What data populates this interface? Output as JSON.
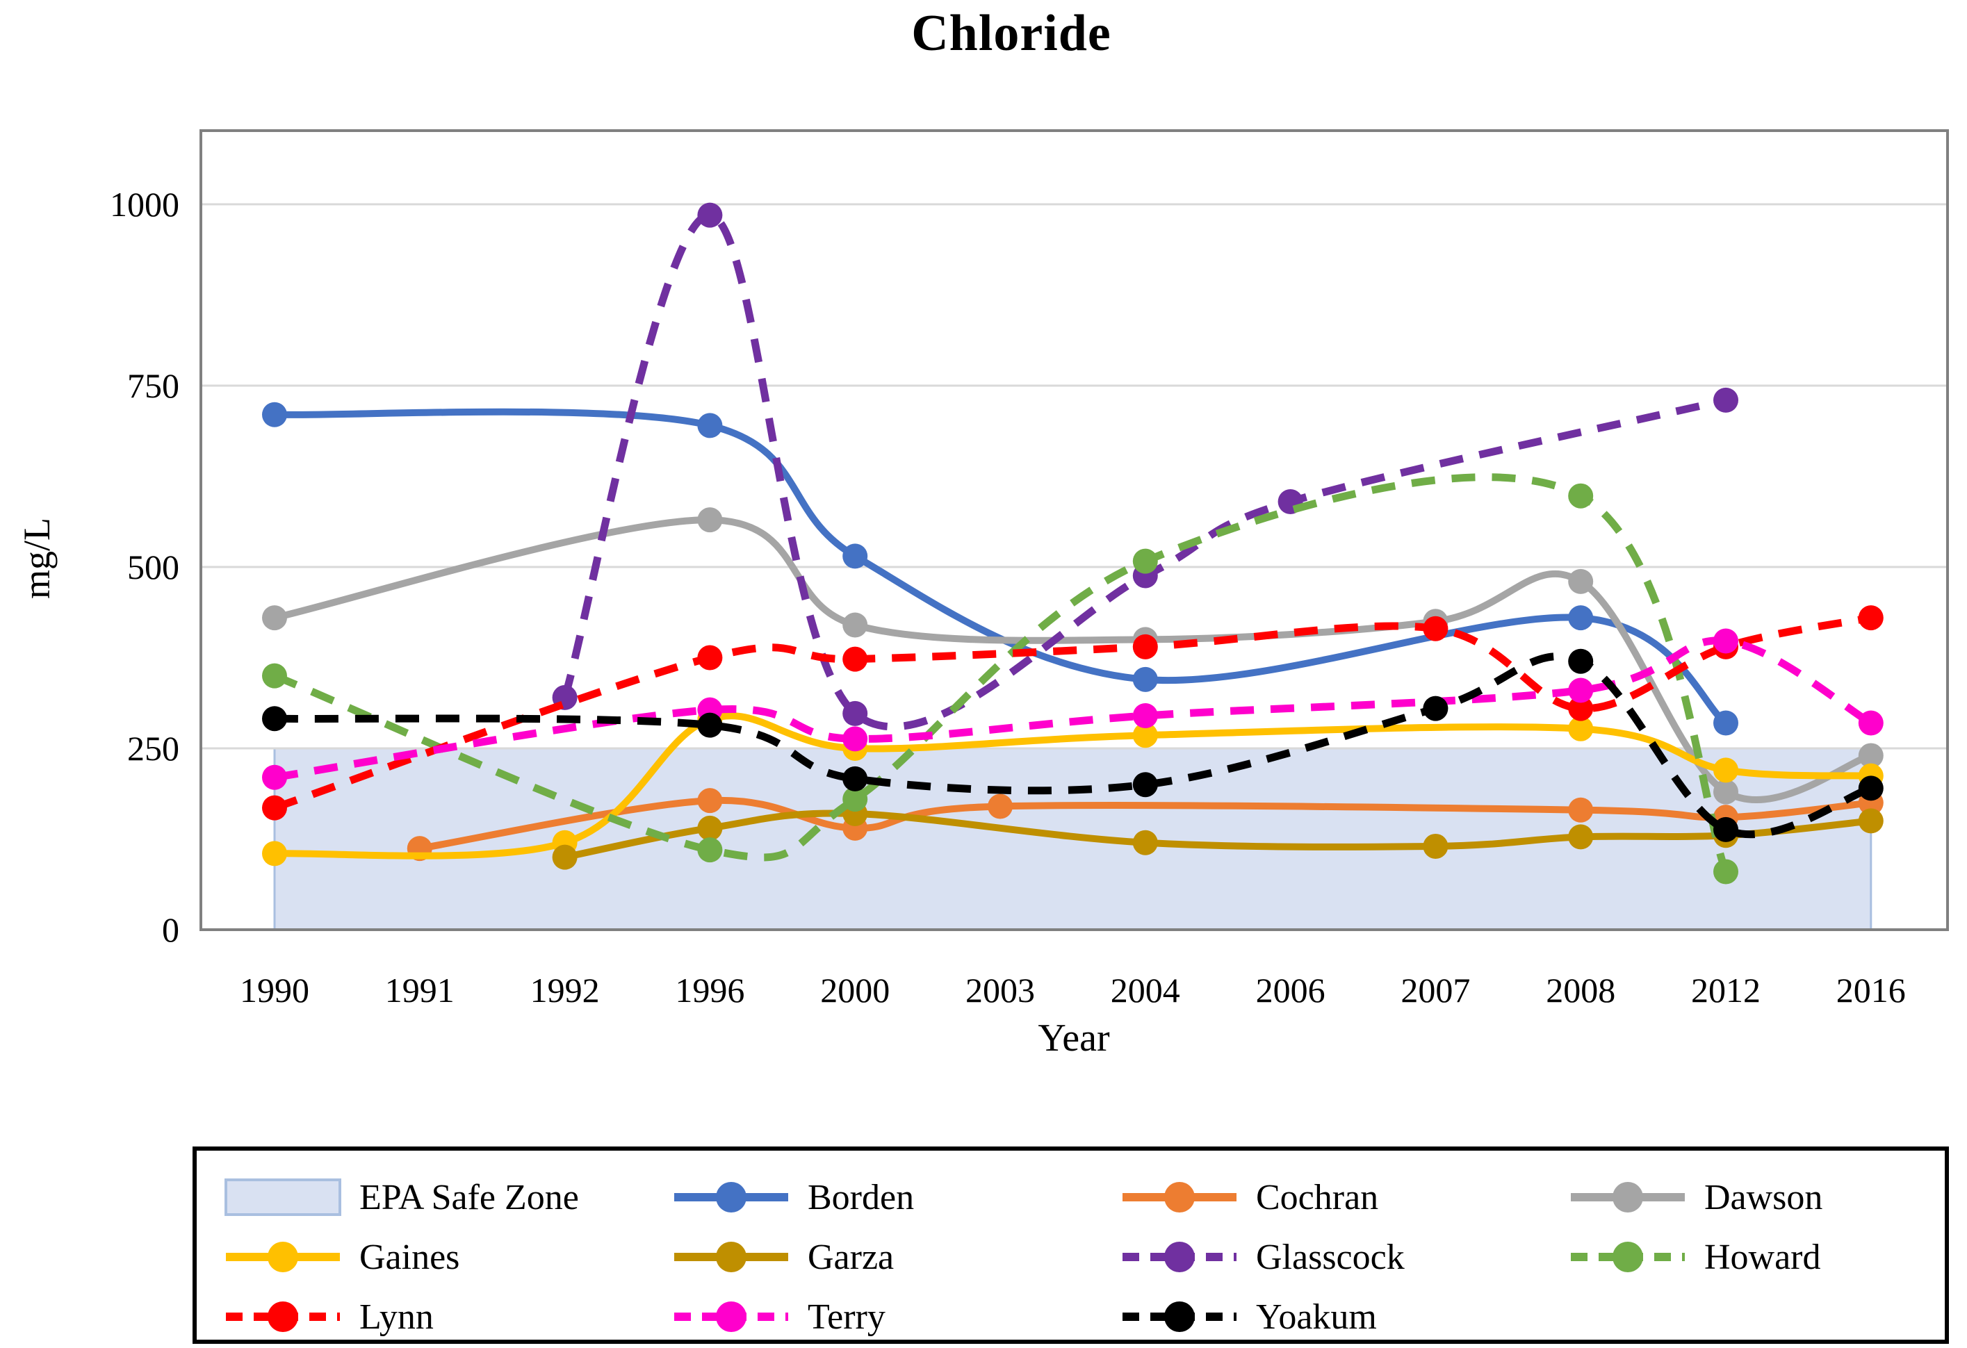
{
  "title": "Chloride",
  "y_axis": {
    "label": "mg/L",
    "ticks": [
      0,
      250,
      500,
      750,
      1000
    ],
    "max": 1100
  },
  "x_axis": {
    "label": "Year"
  },
  "frame": {
    "border_color": "#808080",
    "gridline_color": "#D9D9D9",
    "background": "#FFFFFF"
  },
  "epa_zone": {
    "label": "EPA Safe Zone",
    "fill": "#D9E1F2",
    "border": "#A9BFE0",
    "from": 0,
    "to": 250
  },
  "chart_data": {
    "type": "line",
    "title": "Chloride",
    "xlabel": "Year",
    "ylabel": "mg/L",
    "ylim": [
      0,
      1100
    ],
    "grid": true,
    "legend_position": "bottom",
    "categories": [
      "1990",
      "1991",
      "1992",
      "1996",
      "2000",
      "2003",
      "2004",
      "2006",
      "2007",
      "2008",
      "2012",
      "2016"
    ],
    "epa_safe_zone": {
      "label": "EPA Safe Zone",
      "from": 0,
      "to": 250
    },
    "series": [
      {
        "name": "Borden",
        "color": "#4472C4",
        "style": "solid",
        "values": [
          710,
          null,
          null,
          695,
          515,
          null,
          345,
          null,
          null,
          430,
          285,
          null
        ]
      },
      {
        "name": "Cochran",
        "color": "#ED7D31",
        "style": "solid",
        "values": [
          null,
          112,
          null,
          178,
          140,
          170,
          null,
          null,
          null,
          165,
          155,
          175
        ]
      },
      {
        "name": "Dawson",
        "color": "#A5A5A5",
        "style": "solid",
        "values": [
          430,
          null,
          null,
          565,
          420,
          null,
          400,
          null,
          425,
          480,
          190,
          240
        ]
      },
      {
        "name": "Gaines",
        "color": "#FFC000",
        "style": "solid",
        "values": [
          105,
          null,
          120,
          290,
          250,
          null,
          268,
          null,
          null,
          277,
          220,
          212
        ]
      },
      {
        "name": "Garza",
        "color": "#BF8F00",
        "style": "solid",
        "values": [
          null,
          null,
          100,
          140,
          160,
          null,
          120,
          null,
          115,
          128,
          130,
          150
        ]
      },
      {
        "name": "Glasscock",
        "color": "#7030A0",
        "style": "dashed",
        "values": [
          null,
          null,
          320,
          985,
          298,
          null,
          488,
          590,
          null,
          null,
          730,
          null
        ]
      },
      {
        "name": "Howard",
        "color": "#70AD47",
        "style": "dashed",
        "values": [
          350,
          null,
          null,
          110,
          180,
          null,
          508,
          null,
          null,
          598,
          80,
          null
        ]
      },
      {
        "name": "Lynn",
        "color": "#FF0000",
        "style": "dashed",
        "values": [
          168,
          null,
          null,
          375,
          373,
          null,
          390,
          null,
          415,
          305,
          390,
          430
        ]
      },
      {
        "name": "Terry",
        "color": "#FF00CC",
        "style": "dashed",
        "values": [
          210,
          null,
          null,
          303,
          263,
          null,
          295,
          null,
          null,
          330,
          398,
          285
        ]
      },
      {
        "name": "Yoakum",
        "color": "#000000",
        "style": "dashed",
        "values": [
          291,
          null,
          null,
          282,
          208,
          null,
          200,
          null,
          305,
          370,
          138,
          195
        ]
      }
    ]
  },
  "legend": {
    "items": [
      {
        "type": "zone",
        "label": "EPA Safe Zone",
        "fill": "#D9E1F2",
        "border": "#A9BFE0"
      },
      {
        "type": "line",
        "label": "Borden",
        "color": "#4472C4",
        "dashed": false
      },
      {
        "type": "line",
        "label": "Cochran",
        "color": "#ED7D31",
        "dashed": false
      },
      {
        "type": "line",
        "label": "Dawson",
        "color": "#A5A5A5",
        "dashed": false
      },
      {
        "type": "line",
        "label": "Gaines",
        "color": "#FFC000",
        "dashed": false
      },
      {
        "type": "line",
        "label": "Garza",
        "color": "#BF8F00",
        "dashed": false
      },
      {
        "type": "line",
        "label": "Glasscock",
        "color": "#7030A0",
        "dashed": true
      },
      {
        "type": "line",
        "label": "Howard",
        "color": "#70AD47",
        "dashed": true
      },
      {
        "type": "line",
        "label": "Lynn",
        "color": "#FF0000",
        "dashed": true
      },
      {
        "type": "line",
        "label": "Terry",
        "color": "#FF00CC",
        "dashed": true
      },
      {
        "type": "line",
        "label": "Yoakum",
        "color": "#000000",
        "dashed": true
      }
    ]
  }
}
